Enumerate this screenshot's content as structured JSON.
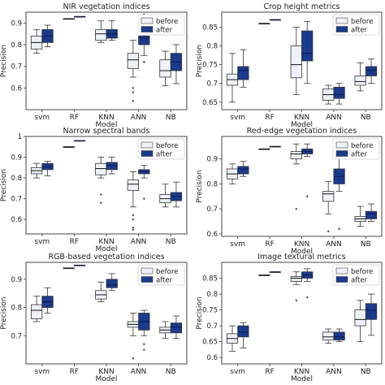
{
  "figure": {
    "ylabel": "Precision",
    "xlabel": "Model"
  },
  "legend": {
    "entries": [
      {
        "name": "before",
        "color": "#eef2f8"
      },
      {
        "name": "after",
        "color": "#1a3a8c"
      }
    ],
    "placement": "top-right"
  },
  "chart_data": [
    {
      "type": "box",
      "title": "NIR vegetation indices",
      "xlabel": "",
      "ylabel": "Precision",
      "categories": [
        "svm",
        "RF",
        "KNN",
        "ANN",
        "NB"
      ],
      "ylim": [
        0.5,
        0.95
      ],
      "yticks": [
        0.6,
        0.7,
        0.8,
        0.9
      ],
      "grid": false,
      "series": [
        {
          "name": "before",
          "boxes": [
            {
              "category": "svm",
              "min": 0.76,
              "q1": 0.78,
              "median": 0.81,
              "q3": 0.84,
              "max": 0.87,
              "outliers": []
            },
            {
              "category": "RF",
              "min": 0.92,
              "q1": 0.92,
              "median": 0.92,
              "q3": 0.92,
              "max": 0.92,
              "outliers": []
            },
            {
              "category": "KNN",
              "min": 0.81,
              "q1": 0.82,
              "median": 0.85,
              "q3": 0.87,
              "max": 0.91,
              "outliers": []
            },
            {
              "category": "ANN",
              "min": 0.65,
              "q1": 0.69,
              "median": 0.73,
              "q3": 0.76,
              "max": 0.82,
              "outliers": [
                0.6,
                0.58,
                0.54
              ]
            },
            {
              "category": "NB",
              "min": 0.61,
              "q1": 0.65,
              "median": 0.68,
              "q3": 0.73,
              "max": 0.77,
              "outliers": []
            }
          ]
        },
        {
          "name": "after",
          "boxes": [
            {
              "category": "svm",
              "min": 0.79,
              "q1": 0.81,
              "median": 0.84,
              "q3": 0.87,
              "max": 0.89,
              "outliers": []
            },
            {
              "category": "RF",
              "min": 0.93,
              "q1": 0.93,
              "median": 0.93,
              "q3": 0.93,
              "max": 0.93,
              "outliers": []
            },
            {
              "category": "KNN",
              "min": 0.82,
              "q1": 0.83,
              "median": 0.85,
              "q3": 0.87,
              "max": 0.91,
              "outliers": []
            },
            {
              "category": "ANN",
              "min": 0.75,
              "q1": 0.8,
              "median": 0.83,
              "q3": 0.84,
              "max": 0.87,
              "outliers": [
                0.94,
                0.92,
                0.72
              ]
            },
            {
              "category": "NB",
              "min": 0.62,
              "q1": 0.68,
              "median": 0.72,
              "q3": 0.76,
              "max": 0.8,
              "outliers": []
            }
          ]
        }
      ]
    },
    {
      "type": "box",
      "title": "Crop height metrics",
      "xlabel": "",
      "ylabel": "Precision",
      "categories": [
        "svm",
        "RF",
        "KNN",
        "ANN",
        "NB"
      ],
      "ylim": [
        0.63,
        0.89
      ],
      "yticks": [
        0.65,
        0.7,
        0.75,
        0.8,
        0.85
      ],
      "grid": false,
      "series": [
        {
          "name": "before",
          "boxes": [
            {
              "category": "svm",
              "min": 0.65,
              "q1": 0.695,
              "median": 0.71,
              "q3": 0.725,
              "max": 0.78,
              "outliers": []
            },
            {
              "category": "RF",
              "min": 0.86,
              "q1": 0.86,
              "median": 0.86,
              "q3": 0.86,
              "max": 0.86,
              "outliers": []
            },
            {
              "category": "KNN",
              "min": 0.67,
              "q1": 0.715,
              "median": 0.75,
              "q3": 0.8,
              "max": 0.85,
              "outliers": []
            },
            {
              "category": "ANN",
              "min": 0.645,
              "q1": 0.655,
              "median": 0.67,
              "q3": 0.685,
              "max": 0.695,
              "outliers": []
            },
            {
              "category": "NB",
              "min": 0.68,
              "q1": 0.695,
              "median": 0.705,
              "q3": 0.72,
              "max": 0.755,
              "outliers": []
            }
          ]
        },
        {
          "name": "after",
          "boxes": [
            {
              "category": "svm",
              "min": 0.69,
              "q1": 0.71,
              "median": 0.735,
              "q3": 0.745,
              "max": 0.79,
              "outliers": []
            },
            {
              "category": "RF",
              "min": 0.87,
              "q1": 0.87,
              "median": 0.87,
              "q3": 0.87,
              "max": 0.87,
              "outliers": []
            },
            {
              "category": "KNN",
              "min": 0.7,
              "q1": 0.76,
              "median": 0.78,
              "q3": 0.84,
              "max": 0.865,
              "outliers": []
            },
            {
              "category": "ANN",
              "min": 0.645,
              "q1": 0.66,
              "median": 0.67,
              "q3": 0.69,
              "max": 0.7,
              "outliers": []
            },
            {
              "category": "NB",
              "min": 0.7,
              "q1": 0.72,
              "median": 0.735,
              "q3": 0.745,
              "max": 0.765,
              "outliers": []
            }
          ]
        }
      ]
    },
    {
      "type": "box",
      "title": "Narrow spectral bands",
      "xlabel": "",
      "ylabel": "Precision",
      "categories": [
        "svm",
        "RF",
        "KNN",
        "ANN",
        "NB"
      ],
      "ylim": [
        0.53,
        1.0
      ],
      "yticks": [
        0.6,
        0.7,
        0.8,
        0.9,
        1.0
      ],
      "grid": false,
      "series": [
        {
          "name": "before",
          "boxes": [
            {
              "category": "svm",
              "min": 0.8,
              "q1": 0.82,
              "median": 0.835,
              "q3": 0.85,
              "max": 0.87,
              "outliers": []
            },
            {
              "category": "RF",
              "min": 0.95,
              "q1": 0.95,
              "median": 0.95,
              "q3": 0.95,
              "max": 0.95,
              "outliers": []
            },
            {
              "category": "KNN",
              "min": 0.8,
              "q1": 0.815,
              "median": 0.845,
              "q3": 0.87,
              "max": 0.9,
              "outliers": [
                0.72,
                0.68
              ]
            },
            {
              "category": "ANN",
              "min": 0.66,
              "q1": 0.74,
              "median": 0.77,
              "q3": 0.79,
              "max": 0.83,
              "outliers": [
                0.62,
                0.6,
                0.56,
                0.55
              ]
            },
            {
              "category": "NB",
              "min": 0.66,
              "q1": 0.68,
              "median": 0.7,
              "q3": 0.72,
              "max": 0.77,
              "outliers": []
            }
          ]
        },
        {
          "name": "after",
          "boxes": [
            {
              "category": "svm",
              "min": 0.81,
              "q1": 0.84,
              "median": 0.855,
              "q3": 0.87,
              "max": 0.88,
              "outliers": []
            },
            {
              "category": "RF",
              "min": 0.98,
              "q1": 0.98,
              "median": 0.98,
              "q3": 0.98,
              "max": 0.98,
              "outliers": []
            },
            {
              "category": "KNN",
              "min": 0.82,
              "q1": 0.84,
              "median": 0.86,
              "q3": 0.875,
              "max": 0.9,
              "outliers": []
            },
            {
              "category": "ANN",
              "min": 0.8,
              "q1": 0.82,
              "median": 0.83,
              "q3": 0.84,
              "max": 0.86,
              "outliers": [
                0.95,
                0.94,
                0.92,
                0.7
              ]
            },
            {
              "category": "NB",
              "min": 0.66,
              "q1": 0.69,
              "median": 0.71,
              "q3": 0.73,
              "max": 0.78,
              "outliers": []
            }
          ]
        }
      ]
    },
    {
      "type": "box",
      "title": "Red-edge vegetation indices",
      "xlabel": "",
      "ylabel": "Precision",
      "categories": [
        "svm",
        "RF",
        "KNN",
        "ANN",
        "NB"
      ],
      "ylim": [
        0.59,
        0.99
      ],
      "yticks": [
        0.6,
        0.7,
        0.8,
        0.9
      ],
      "grid": false,
      "series": [
        {
          "name": "before",
          "boxes": [
            {
              "category": "svm",
              "min": 0.8,
              "q1": 0.82,
              "median": 0.84,
              "q3": 0.86,
              "max": 0.88,
              "outliers": []
            },
            {
              "category": "RF",
              "min": 0.94,
              "q1": 0.94,
              "median": 0.94,
              "q3": 0.94,
              "max": 0.94,
              "outliers": []
            },
            {
              "category": "KNN",
              "min": 0.88,
              "q1": 0.9,
              "median": 0.92,
              "q3": 0.93,
              "max": 0.96,
              "outliers": [
                0.7
              ]
            },
            {
              "category": "ANN",
              "min": 0.68,
              "q1": 0.73,
              "median": 0.76,
              "q3": 0.77,
              "max": 0.81,
              "outliers": [
                0.61
              ]
            },
            {
              "category": "NB",
              "min": 0.63,
              "q1": 0.65,
              "median": 0.66,
              "q3": 0.67,
              "max": 0.71,
              "outliers": []
            }
          ]
        },
        {
          "name": "after",
          "boxes": [
            {
              "category": "svm",
              "min": 0.83,
              "q1": 0.84,
              "median": 0.86,
              "q3": 0.87,
              "max": 0.89,
              "outliers": []
            },
            {
              "category": "RF",
              "min": 0.95,
              "q1": 0.95,
              "median": 0.95,
              "q3": 0.95,
              "max": 0.95,
              "outliers": []
            },
            {
              "category": "KNN",
              "min": 0.91,
              "q1": 0.92,
              "median": 0.93,
              "q3": 0.94,
              "max": 0.96,
              "outliers": [
                0.75
              ]
            },
            {
              "category": "ANN",
              "min": 0.77,
              "q1": 0.8,
              "median": 0.83,
              "q3": 0.86,
              "max": 0.9,
              "outliers": [
                0.62
              ]
            },
            {
              "category": "NB",
              "min": 0.65,
              "q1": 0.66,
              "median": 0.68,
              "q3": 0.69,
              "max": 0.72,
              "outliers": []
            }
          ]
        }
      ]
    },
    {
      "type": "box",
      "title": "RGB-based vegetation indices",
      "xlabel": "Model",
      "ylabel": "Precision",
      "categories": [
        "svm",
        "RF",
        "KNN",
        "ANN",
        "NB"
      ],
      "ylim": [
        0.6,
        0.96
      ],
      "yticks": [
        0.7,
        0.8,
        0.9
      ],
      "grid": false,
      "series": [
        {
          "name": "before",
          "boxes": [
            {
              "category": "svm",
              "min": 0.75,
              "q1": 0.76,
              "median": 0.79,
              "q3": 0.81,
              "max": 0.84,
              "outliers": []
            },
            {
              "category": "RF",
              "min": 0.94,
              "q1": 0.94,
              "median": 0.94,
              "q3": 0.94,
              "max": 0.94,
              "outliers": []
            },
            {
              "category": "KNN",
              "min": 0.82,
              "q1": 0.83,
              "median": 0.845,
              "q3": 0.86,
              "max": 0.89,
              "outliers": []
            },
            {
              "category": "ANN",
              "min": 0.7,
              "q1": 0.73,
              "median": 0.74,
              "q3": 0.75,
              "max": 0.78,
              "outliers": [
                0.62
              ]
            },
            {
              "category": "NB",
              "min": 0.69,
              "q1": 0.71,
              "median": 0.72,
              "q3": 0.73,
              "max": 0.75,
              "outliers": []
            }
          ]
        },
        {
          "name": "after",
          "boxes": [
            {
              "category": "svm",
              "min": 0.78,
              "q1": 0.8,
              "median": 0.82,
              "q3": 0.84,
              "max": 0.87,
              "outliers": []
            },
            {
              "category": "RF",
              "min": 0.95,
              "q1": 0.95,
              "median": 0.95,
              "q3": 0.95,
              "max": 0.95,
              "outliers": []
            },
            {
              "category": "KNN",
              "min": 0.86,
              "q1": 0.87,
              "median": 0.88,
              "q3": 0.9,
              "max": 0.92,
              "outliers": []
            },
            {
              "category": "ANN",
              "min": 0.7,
              "q1": 0.72,
              "median": 0.75,
              "q3": 0.78,
              "max": 0.79,
              "outliers": [
                0.67,
                0.65
              ]
            },
            {
              "category": "NB",
              "min": 0.69,
              "q1": 0.71,
              "median": 0.73,
              "q3": 0.745,
              "max": 0.77,
              "outliers": []
            }
          ]
        }
      ]
    },
    {
      "type": "box",
      "title": "Image textural metrics",
      "xlabel": "Model",
      "ylabel": "Precision",
      "categories": [
        "svm",
        "RF",
        "KNN",
        "ANN",
        "NB"
      ],
      "ylim": [
        0.58,
        0.9
      ],
      "yticks": [
        0.6,
        0.65,
        0.7,
        0.75,
        0.8,
        0.85
      ],
      "grid": false,
      "series": [
        {
          "name": "before",
          "boxes": [
            {
              "category": "svm",
              "min": 0.62,
              "q1": 0.645,
              "median": 0.66,
              "q3": 0.675,
              "max": 0.7,
              "outliers": []
            },
            {
              "category": "RF",
              "min": 0.86,
              "q1": 0.86,
              "median": 0.86,
              "q3": 0.86,
              "max": 0.86,
              "outliers": []
            },
            {
              "category": "KNN",
              "min": 0.83,
              "q1": 0.84,
              "median": 0.85,
              "q3": 0.855,
              "max": 0.87,
              "outliers": [
                0.78
              ]
            },
            {
              "category": "ANN",
              "min": 0.645,
              "q1": 0.655,
              "median": 0.665,
              "q3": 0.68,
              "max": 0.69,
              "outliers": []
            },
            {
              "category": "NB",
              "min": 0.65,
              "q1": 0.7,
              "median": 0.72,
              "q3": 0.75,
              "max": 0.78,
              "outliers": []
            }
          ]
        },
        {
          "name": "after",
          "boxes": [
            {
              "category": "svm",
              "min": 0.63,
              "q1": 0.665,
              "median": 0.68,
              "q3": 0.7,
              "max": 0.71,
              "outliers": []
            },
            {
              "category": "RF",
              "min": 0.87,
              "q1": 0.87,
              "median": 0.87,
              "q3": 0.87,
              "max": 0.87,
              "outliers": []
            },
            {
              "category": "KNN",
              "min": 0.84,
              "q1": 0.85,
              "median": 0.86,
              "q3": 0.87,
              "max": 0.88,
              "outliers": [
                0.79
              ]
            },
            {
              "category": "ANN",
              "min": 0.65,
              "q1": 0.655,
              "median": 0.665,
              "q3": 0.68,
              "max": 0.69,
              "outliers": []
            },
            {
              "category": "NB",
              "min": 0.67,
              "q1": 0.72,
              "median": 0.75,
              "q3": 0.77,
              "max": 0.8,
              "outliers": []
            }
          ]
        }
      ]
    }
  ]
}
